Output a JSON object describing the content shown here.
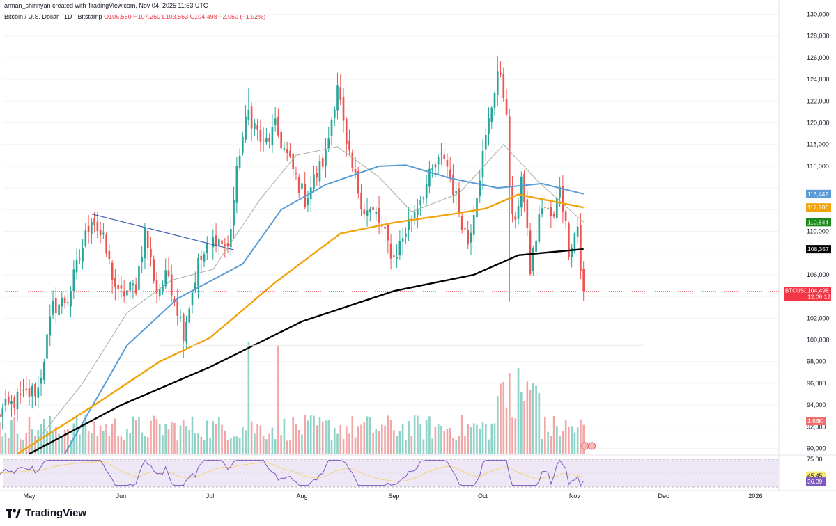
{
  "header": {
    "credit": "arman_shirinyan created with TradingView.com, Nov 04, 2025 11:53 UTC",
    "symbol_line": "Bitcoin / U.S. Dollar · 1D · Bitstamp",
    "ohlc_line": "O106,550 H107,260 L103,553 C104,498 −2,050 (−1.92%)"
  },
  "footer": {
    "brand": "TradingView"
  },
  "colors": {
    "up": "#26a69a",
    "down": "#ef5350",
    "vol_up": "#8fd3c8",
    "vol_down": "#f4a6a6",
    "ma_blue": "#5b9bd5",
    "ma_orange": "#f0a30a",
    "ma_green": "#a0b09a",
    "ma_black": "#000000",
    "trendline": "#3b5fb0",
    "rsi_line": "#7e57c2",
    "rsi_ma": "#f5d57a",
    "rsi_band": "#ede7f6"
  },
  "chart_data": {
    "type": "candlestick",
    "title": "Bitcoin / U.S. Dollar · 1D · Bitstamp",
    "y_ticks": [
      90000,
      92000,
      94000,
      96000,
      98000,
      100000,
      102000,
      106000,
      110000,
      116000,
      118000,
      120000,
      122000,
      124000,
      126000,
      128000,
      130000
    ],
    "x_ticks": [
      "May",
      "Jun",
      "Jul",
      "Aug",
      "Sep",
      "Oct",
      "Nov",
      "Dec",
      "2026"
    ],
    "ylim": [
      89500,
      130500
    ],
    "price_labels": [
      {
        "name": "50-day MA",
        "text": "113,442",
        "value": 113442,
        "color": "#5b9bd5"
      },
      {
        "name": "100-day MA",
        "text": "112,200",
        "value": 112200,
        "color": "#f0a30a"
      },
      {
        "name": "20-day MA",
        "text": "110,844",
        "value": 110844,
        "color": "#1e8a1e"
      },
      {
        "name": "200-day MA",
        "text": "108,357",
        "value": 108357,
        "color": "#000000"
      },
      {
        "name": "BTCUSD",
        "text": "104,498",
        "sub": "12:06:12",
        "value": 104498,
        "color": "#f23645"
      }
    ],
    "volume_label": "1.66K",
    "rsi": {
      "levels": [
        75,
        45.45,
        36.09
      ],
      "labels": [
        "75.00",
        "45.45",
        "36.09"
      ]
    },
    "anchors": [
      [
        "2025-04-20",
        93000
      ],
      [
        "2025-04-27",
        94500
      ],
      [
        "2025-05-04",
        95500
      ],
      [
        "2025-05-09",
        103000
      ],
      [
        "2025-05-14",
        103800
      ],
      [
        "2025-05-22",
        111500
      ],
      [
        "2025-05-26",
        109000
      ],
      [
        "2025-05-31",
        104000
      ],
      [
        "2025-06-06",
        105000
      ],
      [
        "2025-06-09",
        110000
      ],
      [
        "2025-06-13",
        104500
      ],
      [
        "2025-06-17",
        106000
      ],
      [
        "2025-06-22",
        100800
      ],
      [
        "2025-06-27",
        107000
      ],
      [
        "2025-07-03",
        109500
      ],
      [
        "2025-07-07",
        108300
      ],
      [
        "2025-07-11",
        117500
      ],
      [
        "2025-07-14",
        121000
      ],
      [
        "2025-07-19",
        117800
      ],
      [
        "2025-07-23",
        119500
      ],
      [
        "2025-08-02",
        113000
      ],
      [
        "2025-08-09",
        117000
      ],
      [
        "2025-08-13",
        123800
      ],
      [
        "2025-08-16",
        117500
      ],
      [
        "2025-08-22",
        112000
      ],
      [
        "2025-08-26",
        111500
      ],
      [
        "2025-09-01",
        107500
      ],
      [
        "2025-09-06",
        110800
      ],
      [
        "2025-09-14",
        115500
      ],
      [
        "2025-09-18",
        117000
      ],
      [
        "2025-09-22",
        113000
      ],
      [
        "2025-09-26",
        109000
      ],
      [
        "2025-10-02",
        118500
      ],
      [
        "2025-10-06",
        124800
      ],
      [
        "2025-10-09",
        121500
      ],
      [
        "2025-10-10",
        113500
      ],
      [
        "2025-10-12",
        110200
      ],
      [
        "2025-10-14",
        115500
      ],
      [
        "2025-10-17",
        106500
      ],
      [
        "2025-10-21",
        112500
      ],
      [
        "2025-10-25",
        111000
      ],
      [
        "2025-10-27",
        114500
      ],
      [
        "2025-10-30",
        108500
      ],
      [
        "2025-11-02",
        110500
      ],
      [
        "2025-11-03",
        106550
      ],
      [
        "2025-11-04",
        104498
      ]
    ],
    "ma_anchors": {
      "ma200": [
        [
          "2025-05-01",
          89500
        ],
        [
          "2025-06-01",
          94000
        ],
        [
          "2025-07-01",
          97500
        ],
        [
          "2025-08-01",
          101700
        ],
        [
          "2025-09-01",
          104500
        ],
        [
          "2025-09-28",
          106000
        ],
        [
          "2025-10-13",
          107800
        ],
        [
          "2025-11-04",
          108357
        ]
      ],
      "ma100": [
        [
          "2025-04-27",
          89500
        ],
        [
          "2025-05-23",
          94000
        ],
        [
          "2025-06-14",
          98000
        ],
        [
          "2025-07-01",
          100200
        ],
        [
          "2025-07-23",
          105300
        ],
        [
          "2025-08-14",
          109800
        ],
        [
          "2025-09-01",
          110800
        ],
        [
          "2025-09-21",
          111600
        ],
        [
          "2025-10-02",
          112100
        ],
        [
          "2025-10-13",
          113400
        ],
        [
          "2025-11-04",
          112200
        ]
      ],
      "ma50": [
        [
          "2025-05-13",
          89500
        ],
        [
          "2025-06-03",
          99500
        ],
        [
          "2025-06-20",
          103800
        ],
        [
          "2025-07-12",
          107000
        ],
        [
          "2025-07-25",
          112000
        ],
        [
          "2025-08-09",
          114300
        ],
        [
          "2025-08-27",
          116000
        ],
        [
          "2025-09-05",
          116100
        ],
        [
          "2025-09-20",
          114900
        ],
        [
          "2025-10-06",
          114000
        ],
        [
          "2025-10-21",
          114400
        ],
        [
          "2025-11-04",
          113442
        ]
      ],
      "ma20": [
        [
          "2025-04-30",
          89500
        ],
        [
          "2025-05-19",
          96000
        ],
        [
          "2025-06-03",
          102500
        ],
        [
          "2025-06-18",
          105500
        ],
        [
          "2025-07-02",
          106500
        ],
        [
          "2025-07-18",
          113000
        ],
        [
          "2025-07-30",
          117000
        ],
        [
          "2025-08-13",
          117800
        ],
        [
          "2025-08-27",
          115000
        ],
        [
          "2025-09-07",
          111800
        ],
        [
          "2025-09-23",
          113500
        ],
        [
          "2025-10-08",
          118000
        ],
        [
          "2025-10-20",
          114500
        ],
        [
          "2025-11-04",
          110844
        ]
      ]
    },
    "trendline": [
      [
        "2025-05-22",
        111600
      ],
      [
        "2025-07-09",
        108300
      ]
    ]
  }
}
